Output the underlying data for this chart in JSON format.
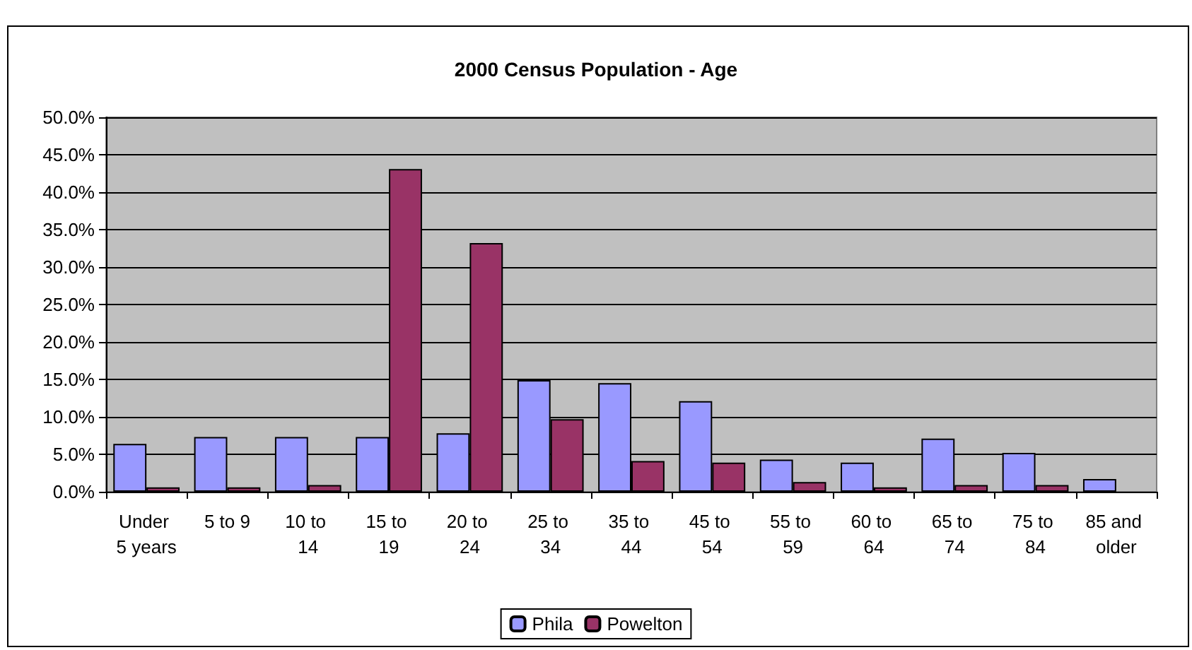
{
  "chart_data": {
    "type": "bar",
    "title": "2000 Census Population - Age",
    "categories": [
      "Under 5 years",
      "5 to 9",
      "10 to 14",
      "15 to 19",
      "20 to 24",
      "25 to 34",
      "35 to 44",
      "45 to 54",
      "55 to 59",
      "60 to 64",
      "65 to 74",
      "75 to 84",
      "85 and older"
    ],
    "series": [
      {
        "name": "Phila",
        "color": "#9999ff",
        "values": [
          6.4,
          7.3,
          7.3,
          7.3,
          7.8,
          14.9,
          14.5,
          12.1,
          4.3,
          3.9,
          7.1,
          5.2,
          1.7
        ]
      },
      {
        "name": "Powelton",
        "color": "#993366",
        "values": [
          0.6,
          0.6,
          0.9,
          43.1,
          33.2,
          9.7,
          4.1,
          3.9,
          1.3,
          0.6,
          0.9,
          0.9,
          null
        ]
      }
    ],
    "ylim": [
      0,
      50
    ],
    "yticks": [
      {
        "value": 0,
        "label": "0.0%"
      },
      {
        "value": 5,
        "label": "5.0%"
      },
      {
        "value": 10,
        "label": "10.0%"
      },
      {
        "value": 15,
        "label": "15.0%"
      },
      {
        "value": 20,
        "label": "20.0%"
      },
      {
        "value": 25,
        "label": "25.0%"
      },
      {
        "value": 30,
        "label": "30.0%"
      },
      {
        "value": 35,
        "label": "35.0%"
      },
      {
        "value": 40,
        "label": "40.0%"
      },
      {
        "value": 45,
        "label": "45.0%"
      },
      {
        "value": 50,
        "label": "50.0%"
      }
    ],
    "grid": "y",
    "legend": "bottom"
  }
}
